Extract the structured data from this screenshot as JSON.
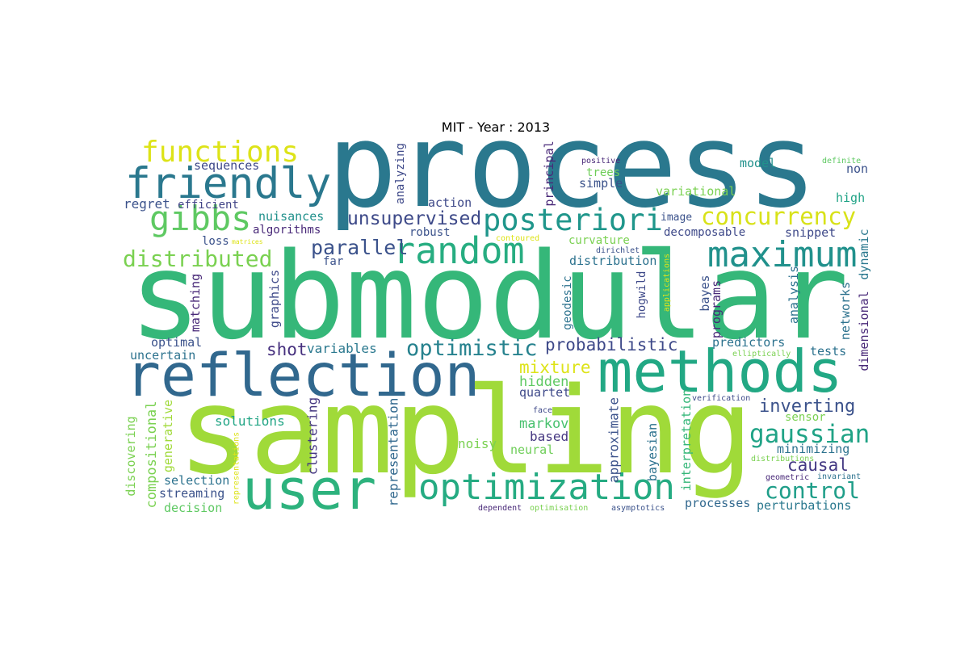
{
  "chart_data": {
    "type": "wordcloud",
    "title": "MIT - Year : 2013",
    "words": [
      "process",
      "submodular",
      "sampling",
      "reflection",
      "methods",
      "user",
      "optimization",
      "random",
      "maximum",
      "friendly",
      "functions",
      "gibbs",
      "posteriori",
      "distributed",
      "concurrency",
      "unsupervised",
      "parallel",
      "optimistic",
      "probabilistic",
      "shot",
      "variables",
      "gaussian",
      "inverting",
      "causal",
      "control",
      "mixture",
      "hidden",
      "quartet",
      "markov",
      "based",
      "neural",
      "noisy",
      "solutions",
      "selection",
      "streaming",
      "decision",
      "uncertain",
      "optimal",
      "sequences",
      "regret",
      "efficient",
      "nuisances",
      "algorithms",
      "loss",
      "matrices",
      "robust",
      "action",
      "far",
      "model",
      "non",
      "definite",
      "high",
      "variational",
      "trees",
      "simple",
      "positive",
      "image",
      "snippet",
      "decomposable",
      "curvature",
      "contoured",
      "distribution",
      "dirichlet",
      "predictors",
      "tests",
      "elliptically",
      "verification",
      "face",
      "sensor",
      "minimizing",
      "distributions",
      "geometric",
      "invariant",
      "perturbations",
      "processes",
      "asymptotics",
      "optimisation",
      "dependent",
      "compositional",
      "generative",
      "discovering",
      "representations",
      "matching",
      "graphics",
      "clustering",
      "representation",
      "analyzing",
      "principal",
      "geodesic",
      "hogwild",
      "approximate",
      "bayesian",
      "interpretation",
      "bayes",
      "programs",
      "applications",
      "analysis",
      "networks",
      "dimensional",
      "dynamic"
    ]
  }
}
